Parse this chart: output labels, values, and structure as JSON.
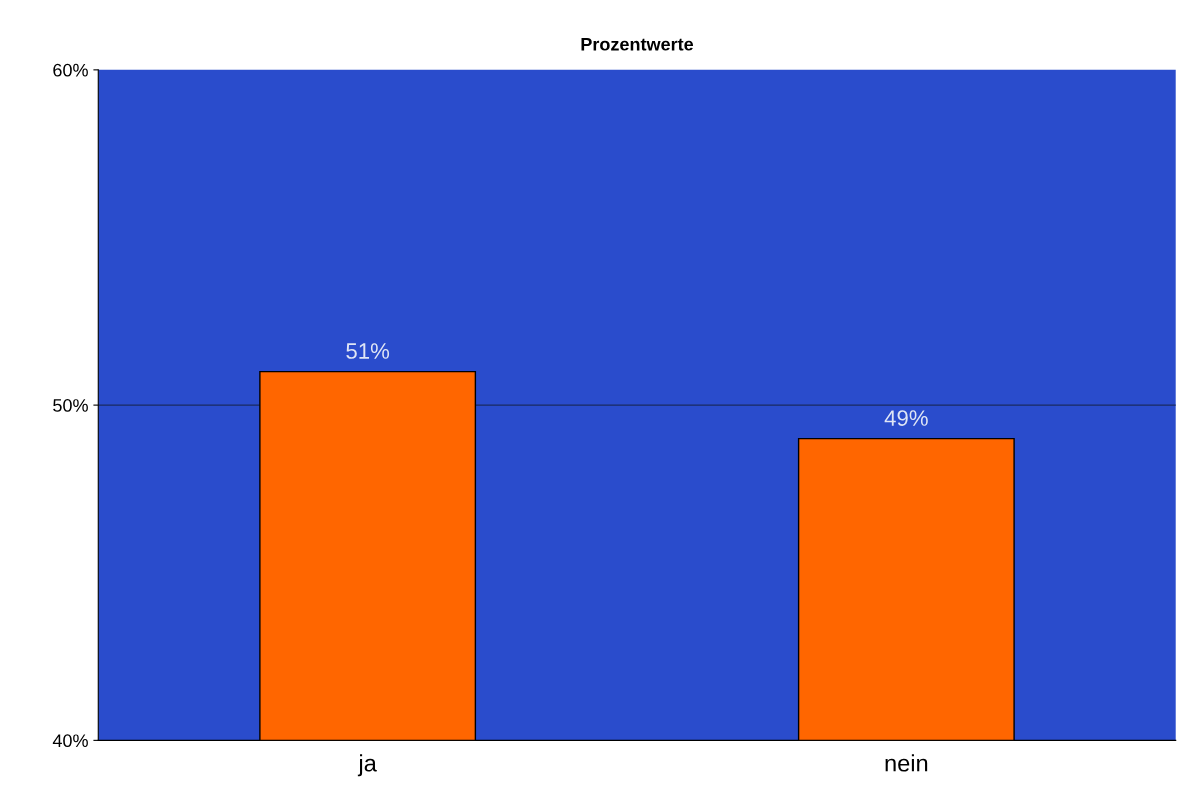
{
  "chart_data": {
    "type": "bar",
    "title": "Prozentwerte",
    "categories": [
      "ja",
      "nein"
    ],
    "values": [
      51,
      49
    ],
    "value_labels": [
      "51%",
      "49%"
    ],
    "color": "#ff6600",
    "ylim": [
      40,
      60
    ],
    "yticks": [
      {
        "value": 40,
        "label": "40%"
      },
      {
        "value": 50,
        "label": "50%"
      },
      {
        "value": 60,
        "label": "60%"
      }
    ],
    "ref_lines": [
      {
        "axis": "y",
        "value": 50,
        "color": "#1a2a60"
      }
    ]
  }
}
